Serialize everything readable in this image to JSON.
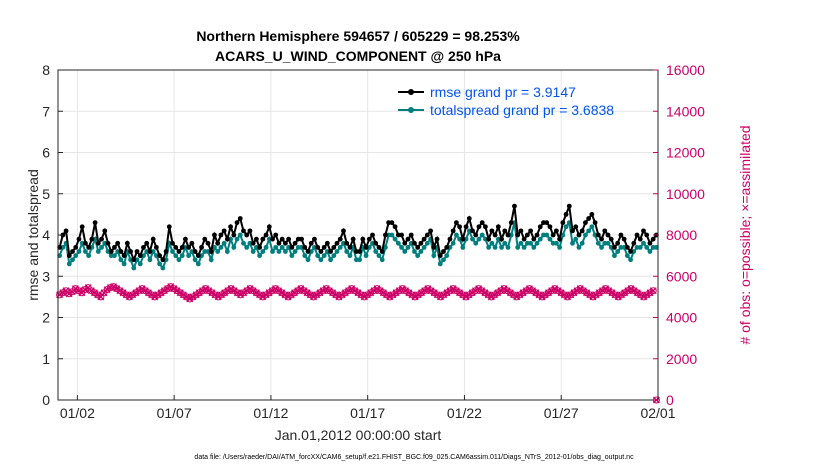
{
  "chart_data": {
    "type": "line",
    "title": "Northern Hemisphere 594657 / 605229 = 98.253%",
    "subtitle": "ACARS_U_WIND_COMPONENT @ 250 hPa",
    "xlabel": "Jan.01,2012 00:00:00 start",
    "ylabel": "rmse and totalspread",
    "y2label": "# of obs: o=possible; ×=assimilated",
    "footnote": "data file: /Users/raeder/DAI/ATM_forcXX/CAM6_setup/f.e21.FHIST_BGC.f09_025.CAM6assim.011/Diags_NTrS_2012-01/obs_diag_output.nc",
    "xlim": [
      0.5,
      31.5
    ],
    "ylim": [
      0,
      8
    ],
    "y2lim": [
      0,
      16000
    ],
    "xtick_values": [
      1.5,
      6.5,
      11.5,
      16.5,
      21.5,
      26.5,
      31.5
    ],
    "xtick_labels": [
      "01/02",
      "01/07",
      "01/12",
      "01/17",
      "01/22",
      "01/27",
      "02/01"
    ],
    "ytick_values": [
      0,
      1,
      2,
      3,
      4,
      5,
      6,
      7,
      8
    ],
    "ytick_labels": [
      "0",
      "1",
      "2",
      "3",
      "4",
      "5",
      "6",
      "7",
      "8"
    ],
    "y2tick_values": [
      0,
      2000,
      4000,
      6000,
      8000,
      10000,
      12000,
      14000,
      16000
    ],
    "y2tick_labels": [
      "0",
      "2000",
      "4000",
      "6000",
      "8000",
      "10000",
      "12000",
      "14000",
      "16000"
    ],
    "colors": {
      "rmse": "#000000",
      "spread": "#007f7f",
      "obs": "#cc0066",
      "legend_text": "#0055ee",
      "axis": "#262626"
    },
    "series": [
      {
        "name": "rmse grand pr = 3.9147",
        "values": [
          3.7,
          4.0,
          4.1,
          3.5,
          3.6,
          3.7,
          3.9,
          4.2,
          3.8,
          3.7,
          3.9,
          4.3,
          3.8,
          3.9,
          4.1,
          3.8,
          3.6,
          3.7,
          3.8,
          3.6,
          3.5,
          3.8,
          3.6,
          3.4,
          3.6,
          3.5,
          3.7,
          3.8,
          3.6,
          3.9,
          3.7,
          3.5,
          3.4,
          3.6,
          4.2,
          3.8,
          3.7,
          3.6,
          3.7,
          3.9,
          3.7,
          3.8,
          3.6,
          3.5,
          3.7,
          3.9,
          3.8,
          3.6,
          4.0,
          3.8,
          4.0,
          4.1,
          3.9,
          4.2,
          4.0,
          4.3,
          4.4,
          4.1,
          4.0,
          4.1,
          3.8,
          3.9,
          3.7,
          3.9,
          4.0,
          4.2,
          3.9,
          4.0,
          3.8,
          3.9,
          3.8,
          3.9,
          3.7,
          3.8,
          3.9,
          3.9,
          3.7,
          3.6,
          3.8,
          3.9,
          3.7,
          3.6,
          3.7,
          3.8,
          3.6,
          3.7,
          3.8,
          3.9,
          4.1,
          3.8,
          3.7,
          3.9,
          3.6,
          3.6,
          3.9,
          3.7,
          3.9,
          4.0,
          3.8,
          3.7,
          3.6,
          4.0,
          4.3,
          4.3,
          4.2,
          4.0,
          4.0,
          3.8,
          3.9,
          4.0,
          3.8,
          3.7,
          3.8,
          3.9,
          4.0,
          4.1,
          3.7,
          3.9,
          3.5,
          3.6,
          3.7,
          3.9,
          4.1,
          4.3,
          4.2,
          3.9,
          4.2,
          4.4,
          4.1,
          4.0,
          4.2,
          4.3,
          4.2,
          3.9,
          4.1,
          4.0,
          4.2,
          3.9,
          4.1,
          4.0,
          4.3,
          4.7,
          4.0,
          4.1,
          3.9,
          4.0,
          4.1,
          3.9,
          4.0,
          4.2,
          4.3,
          4.3,
          4.2,
          4.0,
          4.1,
          3.9,
          4.3,
          4.5,
          4.7,
          4.1,
          4.2,
          4.0,
          4.1,
          4.3,
          4.4,
          4.5,
          4.3,
          4.0,
          3.9,
          4.1,
          4.0,
          3.9,
          3.7,
          3.8,
          4.0,
          3.9,
          3.7,
          3.6,
          3.8,
          4.0,
          3.9,
          4.1,
          4.0,
          3.8,
          3.9,
          4.0
        ]
      },
      {
        "name": "totalspread grand pr = 3.6838",
        "values": [
          3.5,
          3.7,
          3.8,
          3.3,
          3.4,
          3.5,
          3.6,
          3.8,
          3.6,
          3.5,
          3.7,
          3.9,
          3.6,
          3.7,
          3.8,
          3.6,
          3.5,
          3.5,
          3.6,
          3.4,
          3.3,
          3.6,
          3.4,
          3.2,
          3.4,
          3.3,
          3.5,
          3.6,
          3.4,
          3.6,
          3.5,
          3.3,
          3.2,
          3.4,
          3.8,
          3.6,
          3.5,
          3.4,
          3.5,
          3.7,
          3.5,
          3.6,
          3.4,
          3.3,
          3.5,
          3.6,
          3.6,
          3.4,
          3.7,
          3.6,
          3.7,
          3.8,
          3.6,
          3.9,
          3.7,
          3.9,
          4.0,
          3.8,
          3.7,
          3.8,
          3.6,
          3.7,
          3.5,
          3.6,
          3.7,
          3.9,
          3.6,
          3.7,
          3.6,
          3.7,
          3.6,
          3.7,
          3.5,
          3.6,
          3.7,
          3.7,
          3.5,
          3.4,
          3.6,
          3.7,
          3.5,
          3.4,
          3.5,
          3.6,
          3.4,
          3.5,
          3.6,
          3.7,
          3.8,
          3.6,
          3.5,
          3.7,
          3.4,
          3.4,
          3.7,
          3.5,
          3.7,
          3.8,
          3.6,
          3.5,
          3.4,
          3.7,
          4.0,
          4.0,
          3.9,
          3.8,
          3.7,
          3.6,
          3.7,
          3.8,
          3.6,
          3.5,
          3.6,
          3.7,
          3.8,
          3.9,
          3.5,
          3.7,
          3.3,
          3.4,
          3.5,
          3.7,
          3.8,
          4.0,
          3.9,
          3.7,
          3.9,
          4.1,
          3.9,
          3.8,
          3.9,
          4.0,
          3.9,
          3.7,
          3.8,
          3.7,
          3.9,
          3.7,
          3.8,
          3.7,
          4.0,
          4.3,
          3.7,
          3.8,
          3.7,
          3.8,
          3.8,
          3.7,
          3.8,
          3.9,
          4.0,
          4.0,
          3.9,
          3.8,
          3.8,
          3.7,
          4.0,
          4.2,
          4.3,
          3.8,
          3.9,
          3.7,
          3.8,
          4.0,
          4.1,
          4.2,
          4.0,
          3.8,
          3.7,
          3.8,
          3.8,
          3.7,
          3.5,
          3.6,
          3.7,
          3.7,
          3.5,
          3.4,
          3.6,
          3.7,
          3.7,
          3.8,
          3.7,
          3.6,
          3.7,
          3.7
        ]
      }
    ],
    "obs_values": [
      5100,
      5200,
      5300,
      5150,
      5250,
      5400,
      5300,
      5200,
      5350,
      5450,
      5300,
      5200,
      5100,
      5000,
      5200,
      5350,
      5450,
      5500,
      5400,
      5300,
      5200,
      5100,
      5000,
      5100,
      5200,
      5300,
      5400,
      5300,
      5200,
      5100,
      5000,
      5100,
      5200,
      5300,
      5400,
      5500,
      5400,
      5300,
      5200,
      5100,
      5000,
      4900,
      5000,
      5100,
      5200,
      5300,
      5400,
      5300,
      5200,
      5100,
      5000,
      5100,
      5200,
      5300,
      5400,
      5300,
      5200,
      5100,
      5200,
      5300,
      5400,
      5300,
      5200,
      5100,
      5000,
      5100,
      5200,
      5300,
      5400,
      5300,
      5200,
      5100,
      5000,
      5100,
      5200,
      5300,
      5400,
      5300,
      5200,
      5100,
      5000,
      5100,
      5200,
      5300,
      5400,
      5300,
      5200,
      5100,
      5000,
      5100,
      5200,
      5300,
      5400,
      5300,
      5200,
      5100,
      5000,
      5100,
      5200,
      5300,
      5400,
      5300,
      5200,
      5100,
      5000,
      5100,
      5200,
      5300,
      5400,
      5300,
      5200,
      5100,
      5000,
      5100,
      5200,
      5300,
      5400,
      5300,
      5200,
      5100,
      5000,
      5100,
      5200,
      5300,
      5400,
      5300,
      5200,
      5100,
      5000,
      5100,
      5200,
      5300,
      5400,
      5300,
      5200,
      5100,
      5000,
      5100,
      5200,
      5300,
      5400,
      5300,
      5200,
      5100,
      5000,
      5100,
      5200,
      5300,
      5400,
      5300,
      5200,
      5100,
      5000,
      5100,
      5200,
      5300,
      5400,
      5300,
      5200,
      5100,
      5000,
      5100,
      5200,
      5300,
      5400,
      5300,
      5200,
      5100,
      5000,
      5100,
      5200,
      5300,
      5400,
      5300,
      5200,
      5100,
      5000,
      5100,
      5200,
      5300,
      5400,
      5300,
      5200,
      5100,
      5000,
      5100,
      5200,
      5300,
      0
    ]
  }
}
